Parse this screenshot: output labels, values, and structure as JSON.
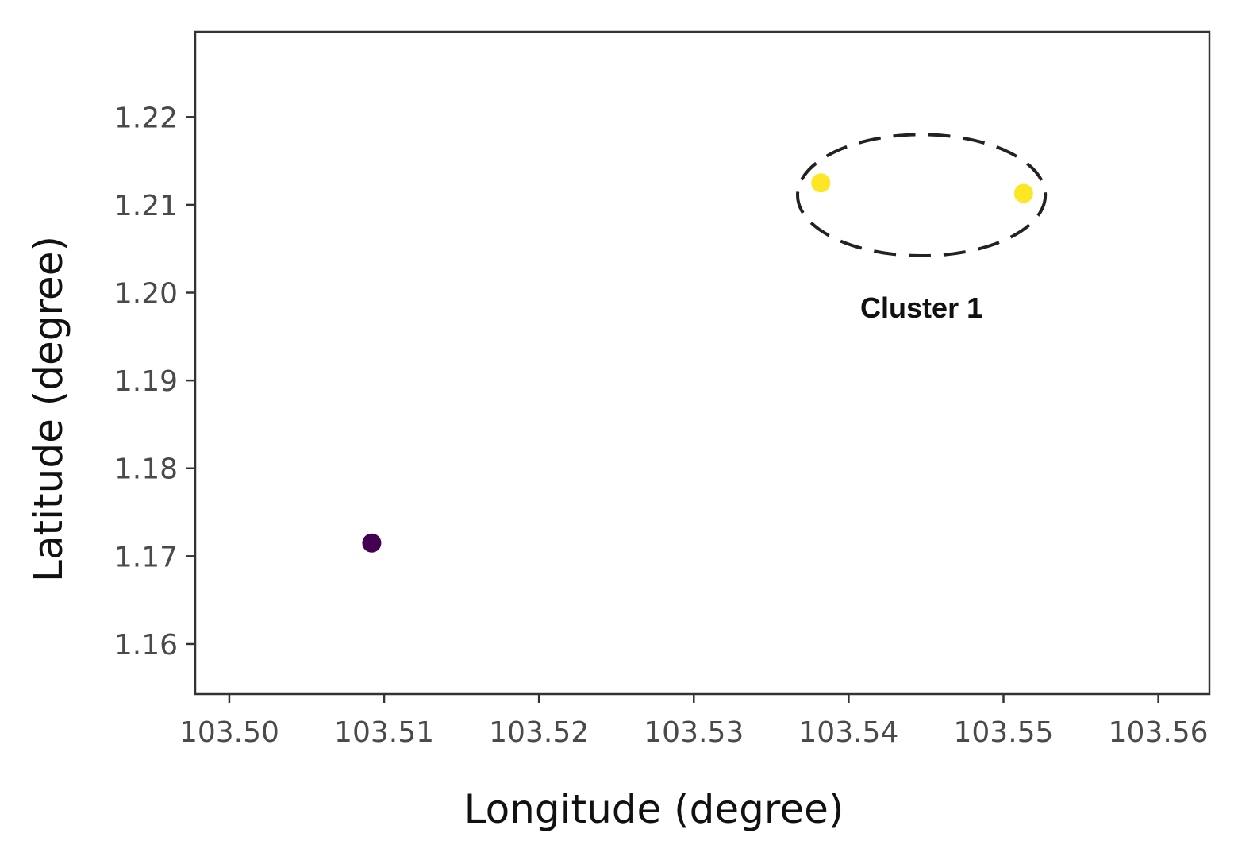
{
  "chart_data": {
    "type": "scatter",
    "xlabel": "Longitude (degree)",
    "ylabel": "Latitude (degree)",
    "xlim": [
      103.4978,
      103.5633
    ],
    "ylim": [
      1.1543,
      1.2297
    ],
    "x_ticks": [
      "103.50",
      "103.51",
      "103.52",
      "103.53",
      "103.54",
      "103.55",
      "103.56"
    ],
    "y_ticks": [
      "1.16",
      "1.17",
      "1.18",
      "1.19",
      "1.20",
      "1.21",
      "1.22"
    ],
    "grid": false,
    "points": [
      {
        "x": 103.5092,
        "y": 1.1715,
        "color": "#440154"
      },
      {
        "x": 103.5382,
        "y": 1.2125,
        "color": "#fde725"
      },
      {
        "x": 103.5513,
        "y": 1.2113,
        "color": "#fde725"
      }
    ],
    "annotations": [
      {
        "text": "Cluster 1",
        "type": "dashed-ellipse",
        "center": {
          "x": 103.5447,
          "y": 1.2111
        },
        "rx": 0.008,
        "ry": 0.0069
      }
    ],
    "colors": {
      "frame": "#333333",
      "tick_text": "#4a4a4a",
      "ellipse": "#222222"
    }
  }
}
